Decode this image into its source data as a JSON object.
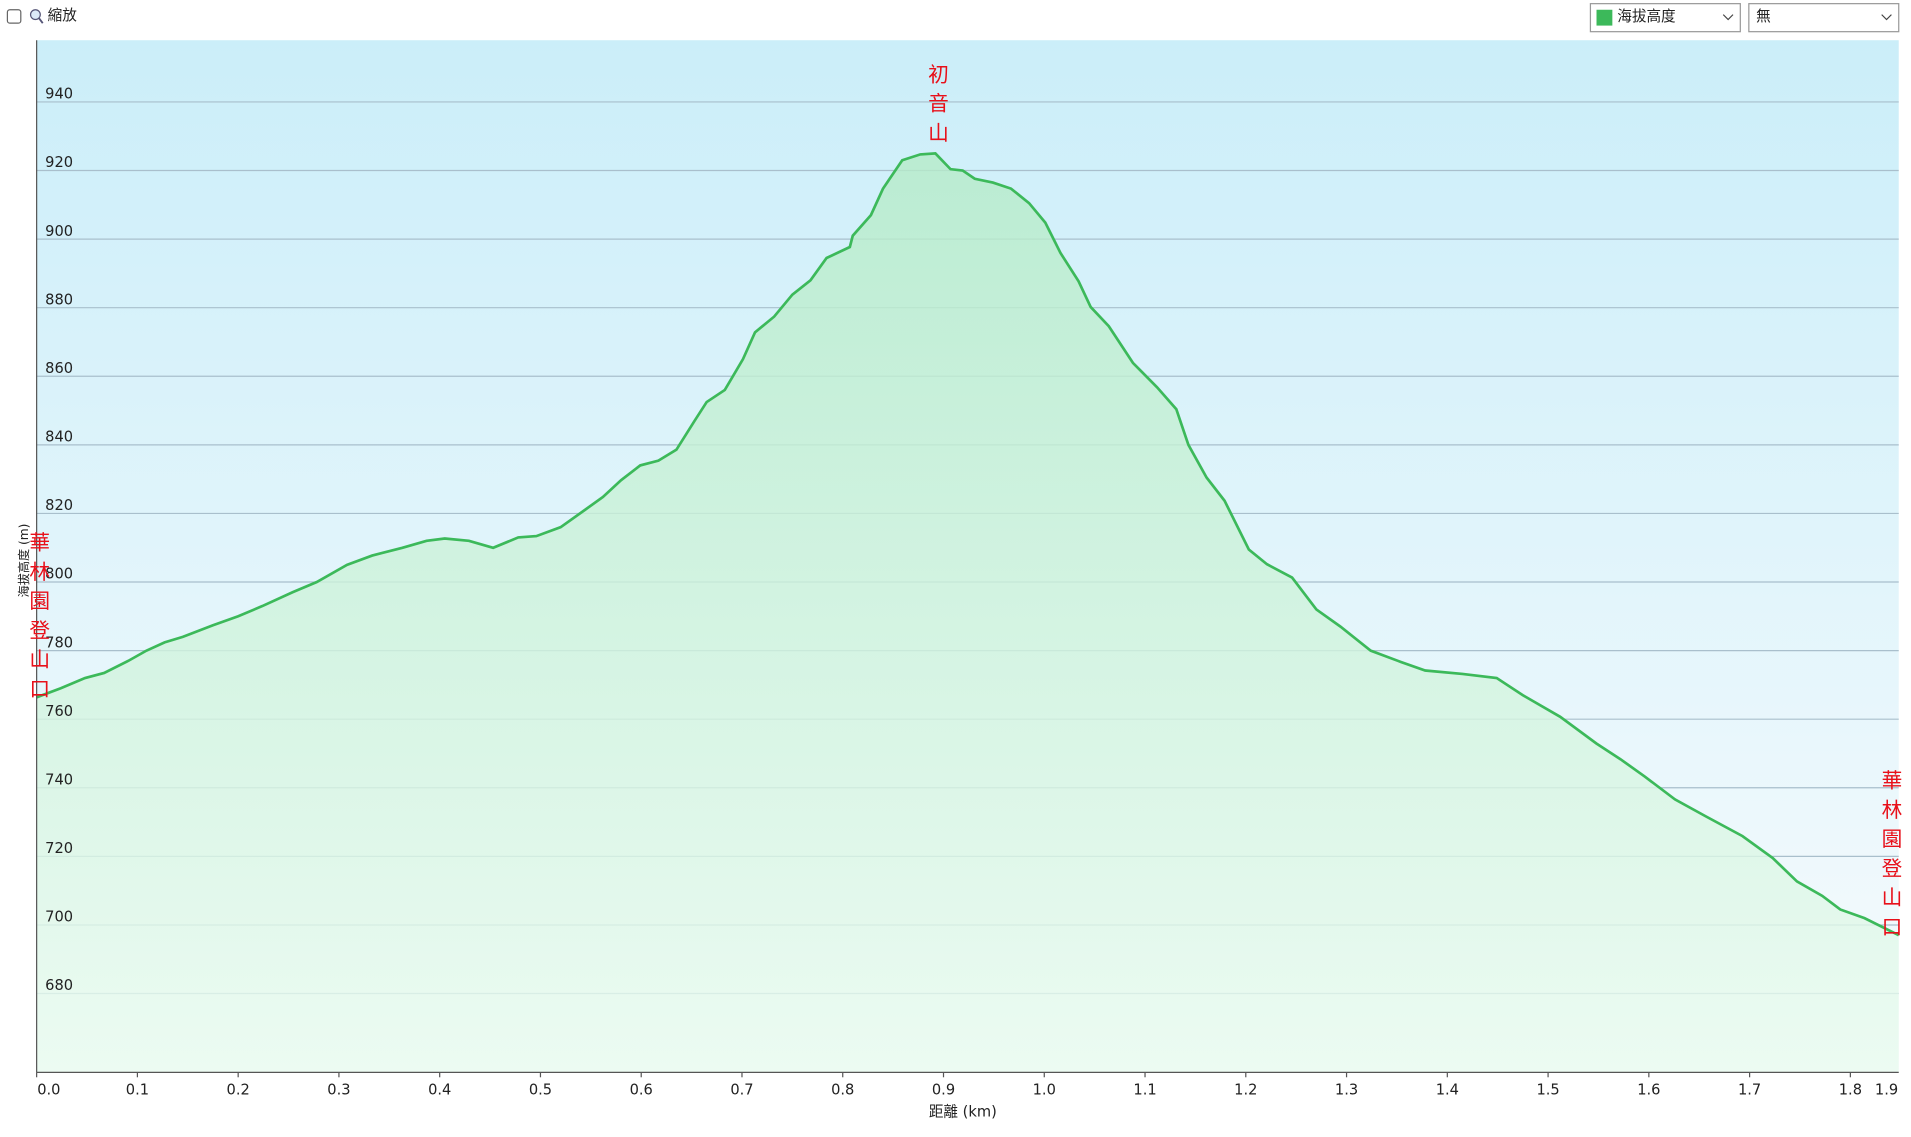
{
  "ui": {
    "zoom_label": "縮放",
    "other_select": "無"
  },
  "chart_data": {
    "type": "area",
    "x_label": "距離 (km)",
    "y_label": "海拔高度 (m)",
    "annotations": [
      "華林園登山口",
      "初音山",
      "華林園登山口"
    ],
    "x": [
      0,
      0.024,
      0.048,
      0.067,
      0.091,
      0.109,
      0.127,
      0.145,
      0.175,
      0.2,
      0.224,
      0.254,
      0.278,
      0.308,
      0.333,
      0.363,
      0.387,
      0.405,
      0.429,
      0.453,
      0.478,
      0.496,
      0.52,
      0.544,
      0.562,
      0.58,
      0.599,
      0.617,
      0.635,
      0.653,
      0.665,
      0.683,
      0.701,
      0.713,
      0.732,
      0.75,
      0.768,
      0.784,
      0.807,
      0.81,
      0.828,
      0.84,
      0.859,
      0.877,
      0.892,
      0.907,
      0.919,
      0.931,
      0.949,
      0.967,
      0.985,
      1.001,
      1.016,
      1.034,
      1.046,
      1.064,
      1.088,
      1.112,
      1.131,
      1.143,
      1.161,
      1.179,
      1.203,
      1.221,
      1.246,
      1.27,
      1.294,
      1.324,
      1.354,
      1.378,
      1.415,
      1.449,
      1.475,
      1.512,
      1.548,
      1.572,
      1.596,
      1.626,
      1.657,
      1.693,
      1.723,
      1.747,
      1.772,
      1.79,
      1.814,
      1.848
    ],
    "series": [
      {
        "name": "海拔高度",
        "color": "#3cb95a",
        "values": [
          766.4,
          769,
          772,
          773.5,
          777,
          780,
          782.4,
          784,
          787.4,
          790,
          793,
          797,
          800,
          805,
          807.7,
          810,
          812,
          812.7,
          812,
          810,
          813,
          813.4,
          816,
          821,
          824.8,
          829.7,
          834,
          835.4,
          838.6,
          847,
          852.5,
          856,
          865,
          872.8,
          877.4,
          883.8,
          888,
          894.5,
          897.7,
          901,
          907,
          914.7,
          923,
          924.7,
          925,
          920.4,
          920,
          917.6,
          916.5,
          914.7,
          910.5,
          904.8,
          896,
          887.7,
          880.2,
          874.6,
          863.9,
          856.8,
          850.4,
          840,
          830.5,
          823.7,
          809.5,
          805.2,
          801.3,
          792,
          787,
          780,
          776.7,
          774.2,
          773.2,
          772,
          767,
          760.7,
          752.9,
          748.3,
          743.3,
          736.6,
          731.6,
          725.9,
          719.5,
          712.7,
          708.5,
          704.5,
          702,
          697
        ]
      }
    ],
    "xlim": [
      0,
      1.848
    ],
    "ylim": [
      657,
      958
    ],
    "xticks": [
      {
        "value": 0,
        "label": "0.0"
      },
      0.1,
      0.2,
      0.3,
      0.4,
      0.5,
      0.6,
      0.7,
      0.8,
      0.9,
      {
        "value": 1,
        "label": "1.0"
      },
      1.1,
      1.2,
      1.3,
      1.4,
      1.5,
      1.6,
      1.7,
      1.8,
      1.9
    ],
    "yticks": [
      680,
      700,
      720,
      740,
      760,
      780,
      800,
      820,
      840,
      860,
      880,
      900,
      920,
      940
    ],
    "grid": true
  }
}
